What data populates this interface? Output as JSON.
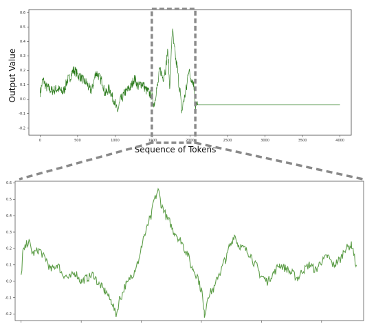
{
  "chart_data": [
    {
      "id": "main",
      "type": "line",
      "xlabel": "Sequence of Tokens",
      "ylabel": "Output Value",
      "xlim": [
        -150,
        4150
      ],
      "ylim": [
        -0.25,
        0.62
      ],
      "x_ticks": [
        0,
        500,
        1000,
        1500,
        2000,
        2500,
        3000,
        3500,
        4000
      ],
      "y_ticks": [
        -0.2,
        -0.1,
        0.0,
        0.1,
        0.2,
        0.3,
        0.4,
        0.5,
        0.6
      ],
      "series": [
        {
          "color": "#2e7d1f",
          "anchors": [
            [
              0,
              0.05
            ],
            [
              40,
              0.13
            ],
            [
              90,
              0.08
            ],
            [
              160,
              0.06
            ],
            [
              230,
              0.07
            ],
            [
              300,
              0.05
            ],
            [
              380,
              0.14
            ],
            [
              450,
              0.2
            ],
            [
              520,
              0.16
            ],
            [
              600,
              0.12
            ],
            [
              680,
              0.06
            ],
            [
              750,
              0.18
            ],
            [
              820,
              0.13
            ],
            [
              870,
              0.04
            ],
            [
              920,
              0.07
            ],
            [
              980,
              0.0
            ],
            [
              1030,
              -0.08
            ],
            [
              1080,
              0.0
            ],
            [
              1140,
              0.05
            ],
            [
              1200,
              0.08
            ],
            [
              1260,
              0.14
            ],
            [
              1310,
              0.09
            ],
            [
              1360,
              0.11
            ],
            [
              1420,
              0.06
            ],
            [
              1480,
              0.03
            ],
            [
              1520,
              -0.03
            ],
            [
              1560,
              0.08
            ],
            [
              1600,
              0.2
            ],
            [
              1640,
              0.15
            ],
            [
              1670,
              0.2
            ],
            [
              1700,
              0.32
            ],
            [
              1730,
              0.1
            ],
            [
              1765,
              0.47
            ],
            [
              1790,
              0.35
            ],
            [
              1820,
              0.24
            ],
            [
              1860,
              0.08
            ],
            [
              1890,
              -0.08
            ],
            [
              1920,
              0.0
            ],
            [
              1950,
              0.07
            ],
            [
              1980,
              0.2
            ],
            [
              2010,
              0.15
            ],
            [
              2040,
              0.12
            ],
            [
              2060,
              0.06
            ],
            [
              2072,
              -0.05
            ],
            [
              2100,
              -0.04
            ],
            [
              4000,
              -0.04
            ]
          ],
          "noise": 0.035
        }
      ]
    },
    {
      "id": "zoom",
      "type": "line",
      "xlim": [
        1490,
        2070
      ],
      "ylim": [
        -0.24,
        0.61
      ],
      "y_ticks": [
        -0.2,
        -0.1,
        0.0,
        0.1,
        0.2,
        0.3,
        0.4,
        0.5,
        0.6
      ],
      "series": [
        {
          "color": "#5e9e49",
          "anchors": [
            [
              1500,
              0.03
            ],
            [
              1503,
              0.18
            ],
            [
              1512,
              0.24
            ],
            [
              1520,
              0.17
            ],
            [
              1530,
              0.19
            ],
            [
              1540,
              0.14
            ],
            [
              1550,
              0.07
            ],
            [
              1560,
              0.1
            ],
            [
              1570,
              0.04
            ],
            [
              1580,
              0.02
            ],
            [
              1590,
              0.05
            ],
            [
              1600,
              0.0
            ],
            [
              1610,
              0.02
            ],
            [
              1620,
              0.04
            ],
            [
              1630,
              -0.02
            ],
            [
              1640,
              -0.06
            ],
            [
              1650,
              -0.12
            ],
            [
              1658,
              -0.2
            ],
            [
              1665,
              -0.1
            ],
            [
              1675,
              -0.02
            ],
            [
              1685,
              0.04
            ],
            [
              1695,
              0.12
            ],
            [
              1705,
              0.28
            ],
            [
              1715,
              0.38
            ],
            [
              1722,
              0.5
            ],
            [
              1728,
              0.55
            ],
            [
              1735,
              0.45
            ],
            [
              1745,
              0.37
            ],
            [
              1755,
              0.3
            ],
            [
              1765,
              0.25
            ],
            [
              1775,
              0.18
            ],
            [
              1785,
              0.08
            ],
            [
              1792,
              0.04
            ],
            [
              1800,
              -0.05
            ],
            [
              1805,
              -0.2
            ],
            [
              1812,
              -0.08
            ],
            [
              1820,
              -0.05
            ],
            [
              1830,
              0.05
            ],
            [
              1840,
              0.13
            ],
            [
              1848,
              0.22
            ],
            [
              1855,
              0.28
            ],
            [
              1862,
              0.22
            ],
            [
              1870,
              0.2
            ],
            [
              1880,
              0.17
            ],
            [
              1890,
              0.1
            ],
            [
              1900,
              0.03
            ],
            [
              1910,
              0.0
            ],
            [
              1920,
              0.05
            ],
            [
              1930,
              0.1
            ],
            [
              1940,
              0.08
            ],
            [
              1950,
              0.05
            ],
            [
              1960,
              0.02
            ],
            [
              1970,
              0.07
            ],
            [
              1980,
              0.1
            ],
            [
              1990,
              0.07
            ],
            [
              2000,
              0.12
            ],
            [
              2010,
              0.15
            ],
            [
              2020,
              0.1
            ],
            [
              2030,
              0.13
            ],
            [
              2040,
              0.2
            ],
            [
              2050,
              0.22
            ],
            [
              2058,
              0.1
            ]
          ],
          "noise": 0.025
        }
      ]
    }
  ]
}
